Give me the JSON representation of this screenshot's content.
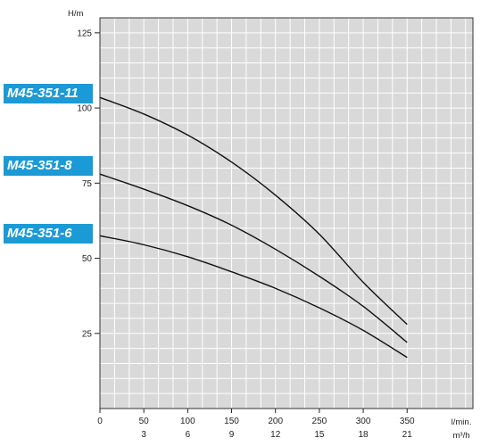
{
  "chart_data": {
    "type": "line",
    "ylabel": "H/m",
    "xlabel_primary": "l/min.",
    "xlabel_secondary": "m³/h",
    "x_ticks_primary": [
      "0",
      "50",
      "100",
      "150",
      "200",
      "250",
      "300",
      "350"
    ],
    "x_ticks_secondary": [
      "3",
      "6",
      "9",
      "12",
      "15",
      "18",
      "21"
    ],
    "y_ticks": [
      "25",
      "50",
      "75",
      "100",
      "125"
    ],
    "xlim": [
      0,
      425
    ],
    "ylim": [
      0,
      130
    ],
    "grid": true,
    "background_color": "#d9d9d9",
    "line_color": "#111111",
    "label_color": "#1a9ad6",
    "series": [
      {
        "name": "M45-351-11",
        "x": [
          0,
          50,
          100,
          150,
          200,
          250,
          300,
          350
        ],
        "y": [
          103.5,
          98,
          91,
          82,
          71,
          58,
          42,
          28
        ]
      },
      {
        "name": "M45-351-8",
        "x": [
          0,
          50,
          100,
          150,
          200,
          250,
          300,
          350
        ],
        "y": [
          78,
          73,
          67.5,
          61,
          53,
          44,
          34,
          22
        ]
      },
      {
        "name": "M45-351-6",
        "x": [
          0,
          50,
          100,
          150,
          200,
          250,
          300,
          350
        ],
        "y": [
          57.5,
          54.5,
          50.5,
          45.5,
          40,
          33.5,
          26,
          17
        ]
      }
    ]
  }
}
